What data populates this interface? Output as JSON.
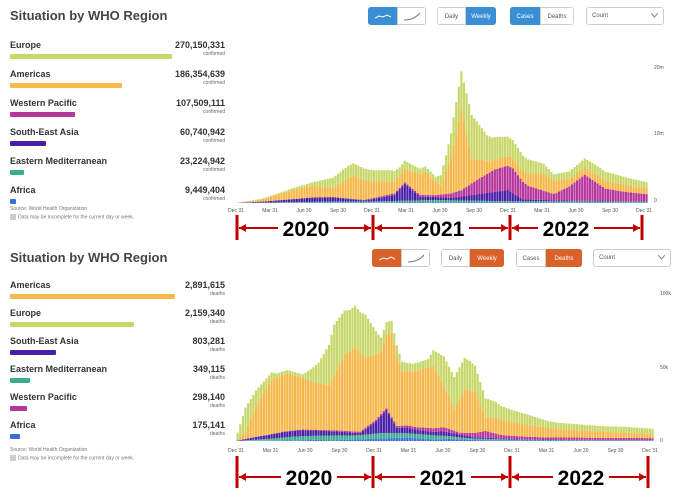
{
  "colors": {
    "cases_accent": "#3a8fd4",
    "deaths_accent": "#d9622b",
    "annotation": "#c00000",
    "Europe": "#c7d76a",
    "Americas": "#f6b74b",
    "Western Pacific": "#b5359a",
    "South-East Asia": "#4a1fa8",
    "Eastern Mediterranean": "#3aae8c",
    "Africa": "#3a6fd8"
  },
  "panels": [
    {
      "title": "Situation by WHO Region",
      "controls": {
        "daily": "Daily",
        "weekly": "Weekly",
        "cases": "Cases",
        "deaths": "Deaths",
        "count": "Count",
        "active_metric": "cases",
        "active_period": "weekly",
        "active_scale": "linear"
      },
      "regions": [
        {
          "name": "Europe",
          "value": "270,150,331",
          "unit": "confirmed",
          "share": 1.0
        },
        {
          "name": "Americas",
          "value": "186,354,639",
          "unit": "confirmed",
          "share": 0.69
        },
        {
          "name": "Western Pacific",
          "value": "107,509,111",
          "unit": "confirmed",
          "share": 0.4
        },
        {
          "name": "South-East Asia",
          "value": "60,740,942",
          "unit": "confirmed",
          "share": 0.225
        },
        {
          "name": "Eastern Mediterranean",
          "value": "23,224,942",
          "unit": "confirmed",
          "share": 0.086
        },
        {
          "name": "Africa",
          "value": "9,449,404",
          "unit": "confirmed",
          "share": 0.035
        }
      ],
      "source": "Source: World Health Organization",
      "note": "Data may be incomplete for the current day or week."
    },
    {
      "title": "Situation by WHO Region",
      "controls": {
        "daily": "Daily",
        "weekly": "Weekly",
        "cases": "Cases",
        "deaths": "Deaths",
        "count": "Count",
        "active_metric": "deaths",
        "active_period": "weekly",
        "active_scale": "linear"
      },
      "regions": [
        {
          "name": "Americas",
          "value": "2,891,615",
          "unit": "deaths",
          "share": 1.0
        },
        {
          "name": "Europe",
          "value": "2,159,340",
          "unit": "deaths",
          "share": 0.75
        },
        {
          "name": "South-East Asia",
          "value": "803,281",
          "unit": "deaths",
          "share": 0.278
        },
        {
          "name": "Eastern Mediterranean",
          "value": "349,115",
          "unit": "deaths",
          "share": 0.12
        },
        {
          "name": "Western Pacific",
          "value": "298,140",
          "unit": "deaths",
          "share": 0.103
        },
        {
          "name": "Africa",
          "value": "175,141",
          "unit": "deaths",
          "share": 0.06
        }
      ],
      "source": "Source: World Health Organization",
      "note": "Data may be incomplete for the current day or week."
    }
  ],
  "chart_data": [
    {
      "type": "bar",
      "stacked": true,
      "title": "Situation by WHO Region",
      "x_ticks": [
        "Dec 31",
        "Mar 31",
        "Jun 30",
        "Sep 30",
        "Dec 31",
        "Mar 31",
        "Jun 30",
        "Sep 30",
        "Dec 31",
        "Mar 31",
        "Jun 30",
        "Sep 30",
        "Dec 31"
      ],
      "y_ticks": [
        "20m",
        "10m",
        "0"
      ],
      "ylim": [
        0,
        23000000
      ],
      "year_labels": [
        "2020",
        "2021",
        "2022"
      ],
      "series_order": [
        "Africa",
        "Eastern Mediterranean",
        "South-East Asia",
        "Western Pacific",
        "Americas",
        "Europe"
      ],
      "keyframes": {
        "Africa": [
          [
            0,
            0
          ],
          [
            30,
            30000
          ],
          [
            60,
            50000
          ],
          [
            78,
            120000
          ],
          [
            100,
            80000
          ],
          [
            130,
            60000
          ],
          [
            160,
            50000
          ]
        ],
        "Eastern Mediterranean": [
          [
            0,
            0
          ],
          [
            26,
            120000
          ],
          [
            40,
            200000
          ],
          [
            52,
            200000
          ],
          [
            66,
            300000
          ],
          [
            78,
            350000
          ],
          [
            92,
            280000
          ],
          [
            110,
            200000
          ],
          [
            130,
            220000
          ],
          [
            160,
            150000
          ]
        ],
        "South-East Asia": [
          [
            0,
            0
          ],
          [
            12,
            200000
          ],
          [
            30,
            700000
          ],
          [
            38,
            700000
          ],
          [
            50,
            150000
          ],
          [
            62,
            1000000
          ],
          [
            66,
            2700000
          ],
          [
            72,
            600000
          ],
          [
            84,
            400000
          ],
          [
            106,
            1800000
          ],
          [
            112,
            300000
          ],
          [
            130,
            100000
          ],
          [
            160,
            30000
          ]
        ],
        "Western Pacific": [
          [
            0,
            0
          ],
          [
            40,
            50000
          ],
          [
            60,
            200000
          ],
          [
            78,
            300000
          ],
          [
            88,
            1000000
          ],
          [
            95,
            2500000
          ],
          [
            101,
            3600000
          ],
          [
            108,
            4000000
          ],
          [
            114,
            2200000
          ],
          [
            124,
            1000000
          ],
          [
            130,
            2300000
          ],
          [
            136,
            4200000
          ],
          [
            144,
            2000000
          ],
          [
            152,
            1500000
          ],
          [
            160,
            1200000
          ]
        ],
        "Americas": [
          [
            0,
            0
          ],
          [
            10,
            300000
          ],
          [
            22,
            1400000
          ],
          [
            30,
            1900000
          ],
          [
            38,
            1400000
          ],
          [
            46,
            3800000
          ],
          [
            54,
            2600000
          ],
          [
            64,
            1800000
          ],
          [
            74,
            3700000
          ],
          [
            80,
            1400000
          ],
          [
            84,
            5800000
          ],
          [
            88,
            13000000
          ],
          [
            92,
            4000000
          ],
          [
            100,
            1500000
          ],
          [
            112,
            1700000
          ],
          [
            120,
            2800000
          ],
          [
            130,
            1200000
          ],
          [
            145,
            1300000
          ],
          [
            160,
            900000
          ]
        ],
        "Europe": [
          [
            0,
            0
          ],
          [
            8,
            100000
          ],
          [
            18,
            200000
          ],
          [
            30,
            500000
          ],
          [
            38,
            1700000
          ],
          [
            44,
            2000000
          ],
          [
            52,
            1800000
          ],
          [
            60,
            1800000
          ],
          [
            70,
            1000000
          ],
          [
            78,
            800000
          ],
          [
            82,
            2600000
          ],
          [
            85,
            4500000
          ],
          [
            88,
            6100000
          ],
          [
            92,
            7000000
          ],
          [
            98,
            4100000
          ],
          [
            104,
            3300000
          ],
          [
            112,
            2500000
          ],
          [
            118,
            1800000
          ],
          [
            124,
            1000000
          ],
          [
            130,
            1200000
          ],
          [
            140,
            1500000
          ],
          [
            150,
            1300000
          ],
          [
            160,
            1000000
          ]
        ]
      }
    },
    {
      "type": "bar",
      "stacked": true,
      "title": "Situation by WHO Region",
      "x_ticks": [
        "Dec 31",
        "Mar 31",
        "Jun 30",
        "Sep 30",
        "Dec 31",
        "Mar 31",
        "Jun 30",
        "Sep 30",
        "Dec 31",
        "Mar 31",
        "Jun 30",
        "Sep 30",
        "Dec 31"
      ],
      "y_ticks": [
        "100k",
        "50k",
        "0"
      ],
      "ylim": [
        0,
        108000
      ],
      "year_labels": [
        "2020",
        "2021",
        "2022"
      ],
      "series_order": [
        "Africa",
        "Eastern Mediterranean",
        "South-East Asia",
        "Western Pacific",
        "Americas",
        "Europe"
      ],
      "keyframes": {
        "Africa": [
          [
            0,
            0
          ],
          [
            20,
            300
          ],
          [
            30,
            800
          ],
          [
            38,
            600
          ],
          [
            48,
            1200
          ],
          [
            56,
            2000
          ],
          [
            66,
            2500
          ],
          [
            76,
            1200
          ],
          [
            82,
            1500
          ],
          [
            92,
            700
          ],
          [
            110,
            400
          ],
          [
            130,
            300
          ],
          [
            160,
            200
          ]
        ],
        "Eastern Mediterranean": [
          [
            0,
            0
          ],
          [
            14,
            1500
          ],
          [
            22,
            2800
          ],
          [
            30,
            3000
          ],
          [
            38,
            3500
          ],
          [
            46,
            3000
          ],
          [
            56,
            3800
          ],
          [
            66,
            3200
          ],
          [
            76,
            3000
          ],
          [
            86,
            1500
          ],
          [
            92,
            1000
          ],
          [
            110,
            500
          ],
          [
            130,
            300
          ],
          [
            160,
            250
          ]
        ],
        "South-East Asia": [
          [
            0,
            0
          ],
          [
            8,
            2000
          ],
          [
            18,
            4000
          ],
          [
            26,
            4500
          ],
          [
            34,
            3500
          ],
          [
            42,
            2500
          ],
          [
            48,
            1500
          ],
          [
            54,
            9000
          ],
          [
            58,
            17000
          ],
          [
            62,
            4000
          ],
          [
            66,
            4200
          ],
          [
            70,
            3000
          ],
          [
            76,
            2500
          ],
          [
            80,
            3300
          ],
          [
            86,
            2000
          ],
          [
            92,
            1000
          ],
          [
            110,
            400
          ],
          [
            130,
            250
          ],
          [
            160,
            200
          ]
        ],
        "Western Pacific": [
          [
            0,
            0
          ],
          [
            12,
            200
          ],
          [
            30,
            500
          ],
          [
            44,
            1000
          ],
          [
            56,
            1200
          ],
          [
            66,
            1500
          ],
          [
            74,
            2500
          ],
          [
            80,
            3000
          ],
          [
            86,
            1500
          ],
          [
            90,
            2500
          ],
          [
            96,
            5000
          ],
          [
            102,
            2500
          ],
          [
            110,
            2000
          ],
          [
            120,
            1500
          ],
          [
            130,
            1700
          ],
          [
            140,
            1500
          ],
          [
            150,
            1600
          ],
          [
            160,
            1400
          ]
        ],
        "Americas": [
          [
            0,
            0
          ],
          [
            4,
            5000
          ],
          [
            8,
            22000
          ],
          [
            14,
            40000
          ],
          [
            20,
            42000
          ],
          [
            26,
            38000
          ],
          [
            30,
            35000
          ],
          [
            36,
            33000
          ],
          [
            42,
            56000
          ],
          [
            46,
            62000
          ],
          [
            50,
            52000
          ],
          [
            56,
            46000
          ],
          [
            60,
            62000
          ],
          [
            64,
            40000
          ],
          [
            68,
            40000
          ],
          [
            72,
            43000
          ],
          [
            76,
            46000
          ],
          [
            80,
            30000
          ],
          [
            84,
            16000
          ],
          [
            88,
            32000
          ],
          [
            92,
            30000
          ],
          [
            96,
            10000
          ],
          [
            100,
            12000
          ],
          [
            106,
            10000
          ],
          [
            112,
            9000
          ],
          [
            124,
            6000
          ],
          [
            136,
            5000
          ],
          [
            148,
            4000
          ],
          [
            160,
            3000
          ]
        ],
        "Europe": [
          [
            0,
            0
          ],
          [
            4,
            18000
          ],
          [
            8,
            12000
          ],
          [
            16,
            3000
          ],
          [
            26,
            2500
          ],
          [
            32,
            15000
          ],
          [
            38,
            37000
          ],
          [
            44,
            30000
          ],
          [
            50,
            31000
          ],
          [
            56,
            10000
          ],
          [
            62,
            8000
          ],
          [
            66,
            6000
          ],
          [
            74,
            6000
          ],
          [
            80,
            22000
          ],
          [
            86,
            24000
          ],
          [
            90,
            22000
          ],
          [
            96,
            14000
          ],
          [
            102,
            10000
          ],
          [
            110,
            8000
          ],
          [
            120,
            5000
          ],
          [
            130,
            4500
          ],
          [
            140,
            4000
          ],
          [
            150,
            4200
          ],
          [
            160,
            4000
          ]
        ]
      }
    }
  ]
}
